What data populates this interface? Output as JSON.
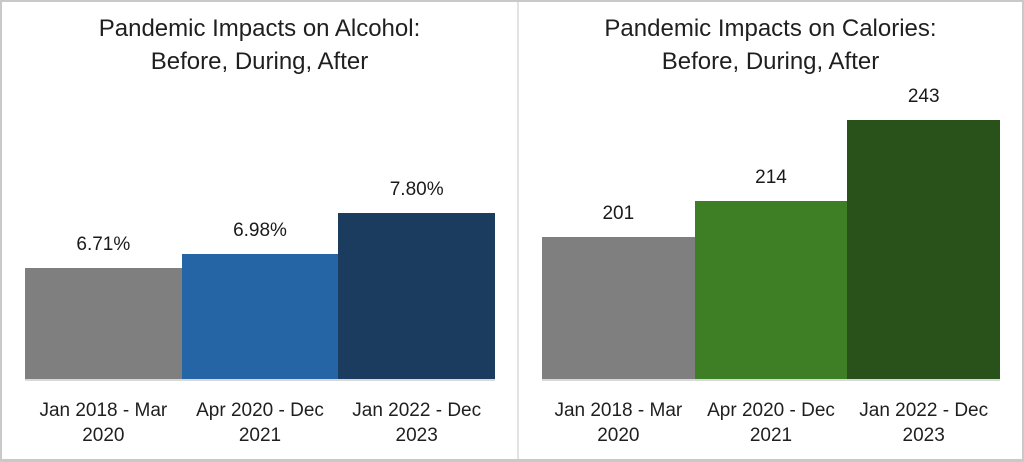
{
  "chart_data": [
    {
      "type": "bar",
      "title": "Pandemic Impacts on Alcohol: Before, During, After",
      "title_lines": [
        "Pandemic Impacts on Alcohol:",
        "Before, During, After"
      ],
      "categories": [
        "Jan 2018 - Mar 2020",
        "Apr 2020 - Dec 2021",
        "Jan 2022 - Dec 2023"
      ],
      "category_lines": [
        [
          "Jan 2018 - Mar",
          "2020"
        ],
        [
          "Apr 2020 - Dec",
          "2021"
        ],
        [
          "Jan 2022 - Dec",
          "2023"
        ]
      ],
      "values": [
        6.71,
        6.98,
        7.8
      ],
      "labels": [
        "6.71%",
        "6.98%",
        "7.80%"
      ],
      "colors": [
        "#7f7f7f",
        "#2565a6",
        "#1b3c5f"
      ],
      "ylim": [
        4.5,
        8.2
      ],
      "xlabel": "",
      "ylabel": "",
      "grid": false,
      "legend": false,
      "data_labels": "above bars"
    },
    {
      "type": "bar",
      "title": "Pandemic Impacts on Calories: Before, During, After",
      "title_lines": [
        "Pandemic Impacts on Calories:",
        "Before, During, After"
      ],
      "categories": [
        "Jan 2018 - Mar 2020",
        "Apr 2020 - Dec 2021",
        "Jan 2022 - Dec 2023"
      ],
      "category_lines": [
        [
          "Jan 2018 - Mar",
          "2020"
        ],
        [
          "Apr 2020 - Dec",
          "2021"
        ],
        [
          "Jan 2022 - Dec",
          "2023"
        ]
      ],
      "values": [
        201,
        214,
        243
      ],
      "labels": [
        "201",
        "214",
        "243"
      ],
      "colors": [
        "#7f7f7f",
        "#3e7e24",
        "#285219"
      ],
      "ylim": [
        150,
        250
      ],
      "xlabel": "",
      "ylabel": "",
      "grid": false,
      "legend": false,
      "data_labels": "above bars"
    }
  ]
}
